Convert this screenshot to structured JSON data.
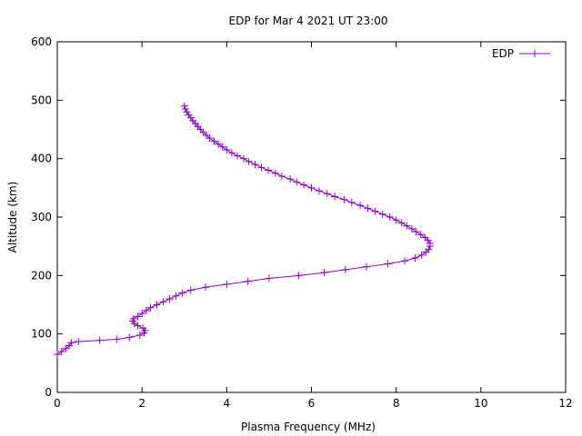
{
  "chart_data": {
    "type": "line",
    "title": "EDP for Mar 4 2021 UT 23:00",
    "xlabel": "Plasma Frequency (MHz)",
    "ylabel": "Altitude (km)",
    "xlim": [
      0,
      12
    ],
    "ylim": [
      0,
      600
    ],
    "x_ticks": [
      "0",
      "2",
      "4",
      "6",
      "8",
      "10",
      "12"
    ],
    "y_ticks": [
      "0",
      "100",
      "200",
      "300",
      "400",
      "500",
      "600"
    ],
    "legend_position": "top-right",
    "grid": false,
    "series": [
      {
        "name": "EDP",
        "color": "#9400d3",
        "marker": "plus",
        "points": [
          [
            0.0,
            65
          ],
          [
            0.1,
            70
          ],
          [
            0.2,
            75
          ],
          [
            0.28,
            80
          ],
          [
            0.33,
            85
          ],
          [
            0.5,
            87
          ],
          [
            1.0,
            89
          ],
          [
            1.4,
            91
          ],
          [
            1.7,
            94
          ],
          [
            1.95,
            98
          ],
          [
            2.05,
            102
          ],
          [
            2.07,
            106
          ],
          [
            2.02,
            110
          ],
          [
            1.9,
            114
          ],
          [
            1.82,
            118
          ],
          [
            1.78,
            122
          ],
          [
            1.8,
            126
          ],
          [
            1.9,
            130
          ],
          [
            2.0,
            135
          ],
          [
            2.1,
            140
          ],
          [
            2.2,
            145
          ],
          [
            2.35,
            150
          ],
          [
            2.5,
            155
          ],
          [
            2.65,
            160
          ],
          [
            2.8,
            165
          ],
          [
            2.95,
            170
          ],
          [
            3.15,
            175
          ],
          [
            3.5,
            180
          ],
          [
            4.0,
            185
          ],
          [
            4.5,
            190
          ],
          [
            5.0,
            195
          ],
          [
            5.7,
            200
          ],
          [
            6.3,
            205
          ],
          [
            6.8,
            210
          ],
          [
            7.3,
            215
          ],
          [
            7.8,
            220
          ],
          [
            8.2,
            225
          ],
          [
            8.45,
            230
          ],
          [
            8.6,
            235
          ],
          [
            8.7,
            240
          ],
          [
            8.77,
            245
          ],
          [
            8.8,
            250
          ],
          [
            8.8,
            255
          ],
          [
            8.75,
            260
          ],
          [
            8.68,
            265
          ],
          [
            8.58,
            270
          ],
          [
            8.47,
            275
          ],
          [
            8.37,
            280
          ],
          [
            8.25,
            285
          ],
          [
            8.13,
            290
          ],
          [
            8.0,
            295
          ],
          [
            7.85,
            300
          ],
          [
            7.68,
            305
          ],
          [
            7.5,
            310
          ],
          [
            7.33,
            315
          ],
          [
            7.15,
            320
          ],
          [
            6.95,
            325
          ],
          [
            6.77,
            330
          ],
          [
            6.55,
            335
          ],
          [
            6.37,
            340
          ],
          [
            6.18,
            345
          ],
          [
            6.0,
            350
          ],
          [
            5.82,
            355
          ],
          [
            5.65,
            360
          ],
          [
            5.5,
            365
          ],
          [
            5.3,
            370
          ],
          [
            5.15,
            375
          ],
          [
            4.98,
            380
          ],
          [
            4.82,
            385
          ],
          [
            4.67,
            390
          ],
          [
            4.52,
            395
          ],
          [
            4.4,
            400
          ],
          [
            4.25,
            405
          ],
          [
            4.12,
            410
          ],
          [
            4.0,
            415
          ],
          [
            3.9,
            420
          ],
          [
            3.8,
            425
          ],
          [
            3.7,
            430
          ],
          [
            3.6,
            435
          ],
          [
            3.52,
            440
          ],
          [
            3.45,
            445
          ],
          [
            3.38,
            450
          ],
          [
            3.32,
            455
          ],
          [
            3.26,
            460
          ],
          [
            3.2,
            465
          ],
          [
            3.15,
            470
          ],
          [
            3.1,
            475
          ],
          [
            3.06,
            480
          ],
          [
            3.02,
            485
          ],
          [
            3.0,
            490
          ]
        ]
      }
    ]
  }
}
